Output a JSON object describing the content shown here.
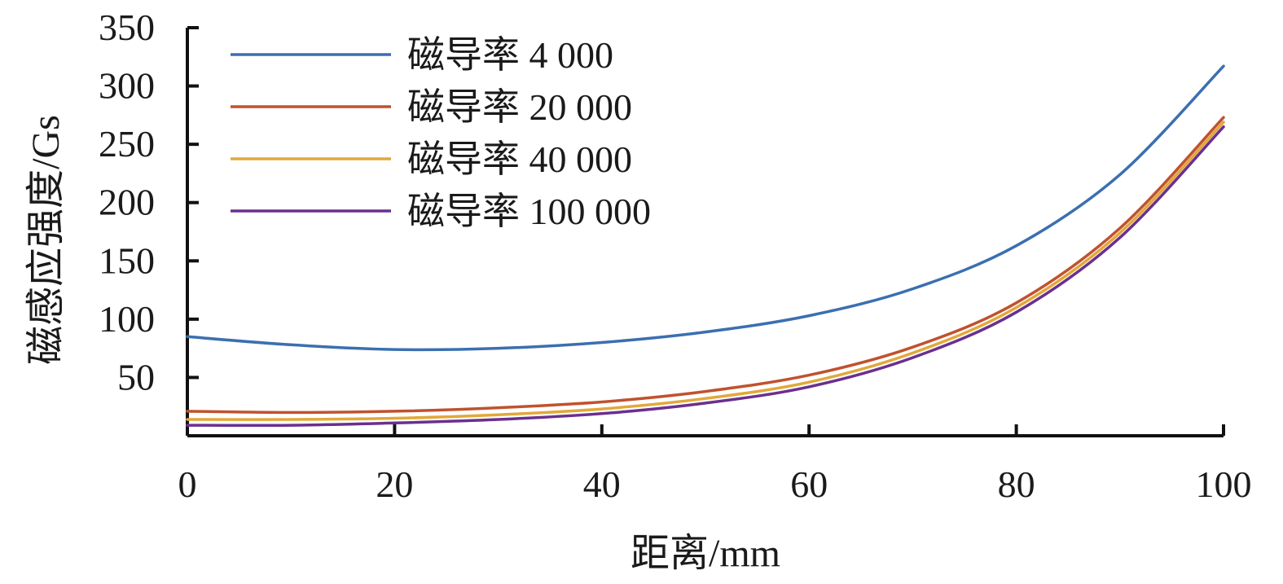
{
  "chart_data": {
    "type": "line",
    "xlabel": "距离/mm",
    "ylabel": "磁感应强度/Gs",
    "xlim": [
      0,
      100
    ],
    "ylim": [
      0,
      350
    ],
    "x_ticks": [
      "0",
      "20",
      "40",
      "60",
      "80",
      "100"
    ],
    "y_ticks": [
      "50",
      "100",
      "150",
      "200",
      "250",
      "300",
      "350"
    ],
    "legend_position": "top-left",
    "grid": false,
    "x": [
      0,
      10,
      20,
      30,
      40,
      50,
      60,
      70,
      80,
      90,
      100
    ],
    "series": [
      {
        "name": "磁导率 4 000",
        "color": "#3b6fb0",
        "values": [
          85,
          78,
          74,
          75,
          80,
          89,
          103,
          126,
          163,
          224,
          317
        ]
      },
      {
        "name": "磁导率 20 000",
        "color": "#c0522e",
        "values": [
          21,
          20,
          21,
          24,
          29,
          38,
          52,
          76,
          114,
          178,
          273
        ]
      },
      {
        "name": "磁导率 40 000",
        "color": "#e1a83a",
        "values": [
          14,
          14,
          15,
          18,
          23,
          32,
          46,
          71,
          110,
          174,
          269
        ]
      },
      {
        "name": "磁导率 100 000",
        "color": "#6b2f8f",
        "values": [
          9,
          9,
          11,
          14,
          19,
          28,
          42,
          67,
          106,
          170,
          265
        ]
      }
    ]
  }
}
